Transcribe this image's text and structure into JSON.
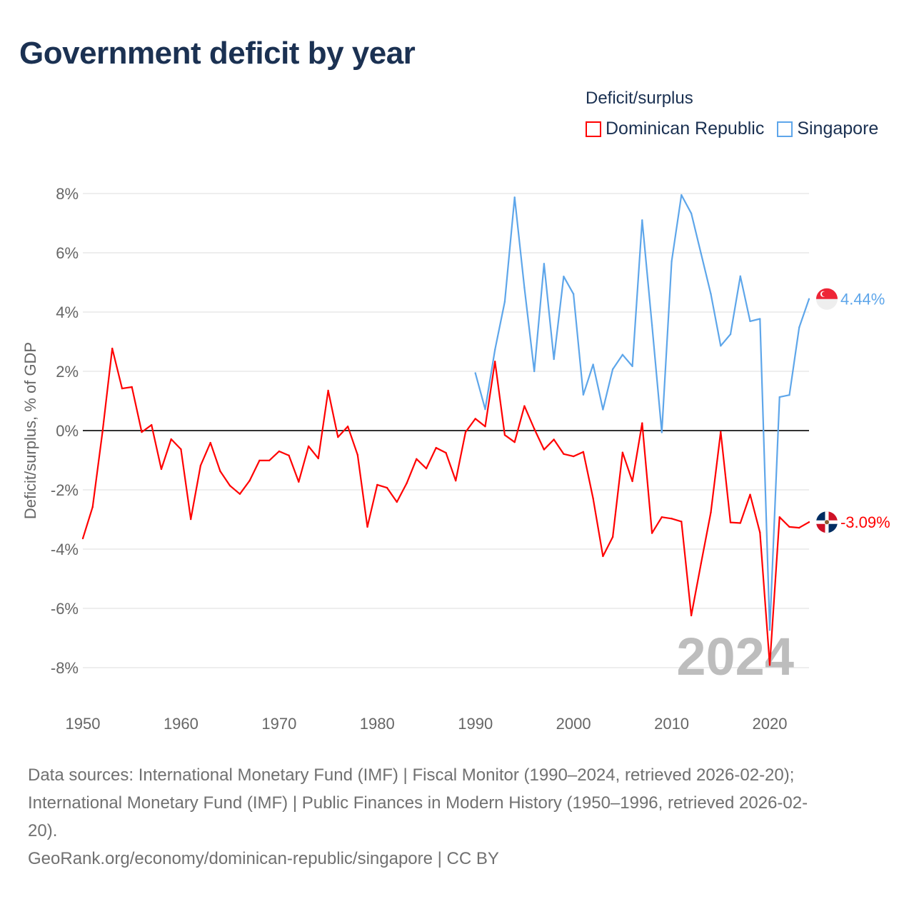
{
  "title": "Government deficit by year",
  "legend": {
    "title": "Deficit/surplus",
    "items": [
      {
        "label": "Dominican Republic",
        "color": "#ff0000"
      },
      {
        "label": "Singapore",
        "color": "#5ea6ea"
      }
    ]
  },
  "sources": {
    "line1": "Data sources: International Monetary Fund (IMF) | Fiscal Monitor (1990–2024, retrieved 2026-02-20);",
    "line2": "International Monetary Fund (IMF) | Public Finances in Modern History (1950–1996, retrieved 2026-02-",
    "line3": "20).",
    "line4": "GeoRank.org/economy/dominican-republic/singapore | CC BY"
  },
  "chart_data": {
    "type": "line",
    "title": "Government deficit by year",
    "ylabel": "Deficit/surplus, % of GDP",
    "xlabel": "",
    "xlim": [
      1950,
      2024
    ],
    "ylim": [
      -8,
      8
    ],
    "yticks": [
      8,
      6,
      4,
      2,
      0,
      -2,
      -4,
      -6,
      -8
    ],
    "ytick_labels": [
      "8%",
      "6%",
      "4%",
      "2%",
      "0%",
      "-2%",
      "-4%",
      "-6%",
      "-8%"
    ],
    "xticks": [
      1950,
      1960,
      1970,
      1980,
      1990,
      2000,
      2010,
      2020
    ],
    "xtick_labels": [
      "1950",
      "1960",
      "1970",
      "1980",
      "1990",
      "2000",
      "2010",
      "2020"
    ],
    "year_label": "2024",
    "grid": true,
    "legend_position": "top-right",
    "series": [
      {
        "name": "Dominican Republic",
        "color": "#ff0000",
        "end_label": "-3.09%",
        "start_year": 1950,
        "values": [
          -3.64,
          -2.58,
          -0.05,
          2.77,
          1.42,
          1.47,
          -0.05,
          0.19,
          -1.3,
          -0.29,
          -0.63,
          -2.99,
          -1.18,
          -0.41,
          -1.37,
          -1.86,
          -2.14,
          -1.69,
          -1.01,
          -1.01,
          -0.7,
          -0.84,
          -1.73,
          -0.53,
          -0.94,
          1.35,
          -0.22,
          0.14,
          -0.82,
          -3.25,
          -1.83,
          -1.93,
          -2.41,
          -1.78,
          -0.96,
          -1.28,
          -0.58,
          -0.75,
          -1.69,
          -0.05,
          0.4,
          0.14,
          2.33,
          -0.15,
          -0.39,
          0.83,
          0.06,
          -0.64,
          -0.3,
          -0.79,
          -0.87,
          -0.72,
          -2.29,
          -4.24,
          -3.59,
          -0.74,
          -1.71,
          0.25,
          -3.46,
          -2.92,
          -2.97,
          -3.07,
          -6.24,
          -4.48,
          -2.76,
          -0.04,
          -3.1,
          -3.12,
          -2.16,
          -3.44,
          -7.91,
          -2.92,
          -3.25,
          -3.28,
          -3.09
        ]
      },
      {
        "name": "Singapore",
        "color": "#5ea6ea",
        "end_label": "4.44%",
        "start_year": 1990,
        "values": [
          1.94,
          0.72,
          2.73,
          4.35,
          7.87,
          4.82,
          2.0,
          5.63,
          2.41,
          5.2,
          4.61,
          1.21,
          2.23,
          0.71,
          2.07,
          2.56,
          2.17,
          7.1,
          3.56,
          -0.06,
          5.71,
          7.95,
          7.33,
          5.97,
          4.61,
          2.86,
          3.25,
          5.21,
          3.69,
          3.77,
          -6.73,
          1.13,
          1.2,
          3.48,
          4.44
        ]
      }
    ]
  }
}
